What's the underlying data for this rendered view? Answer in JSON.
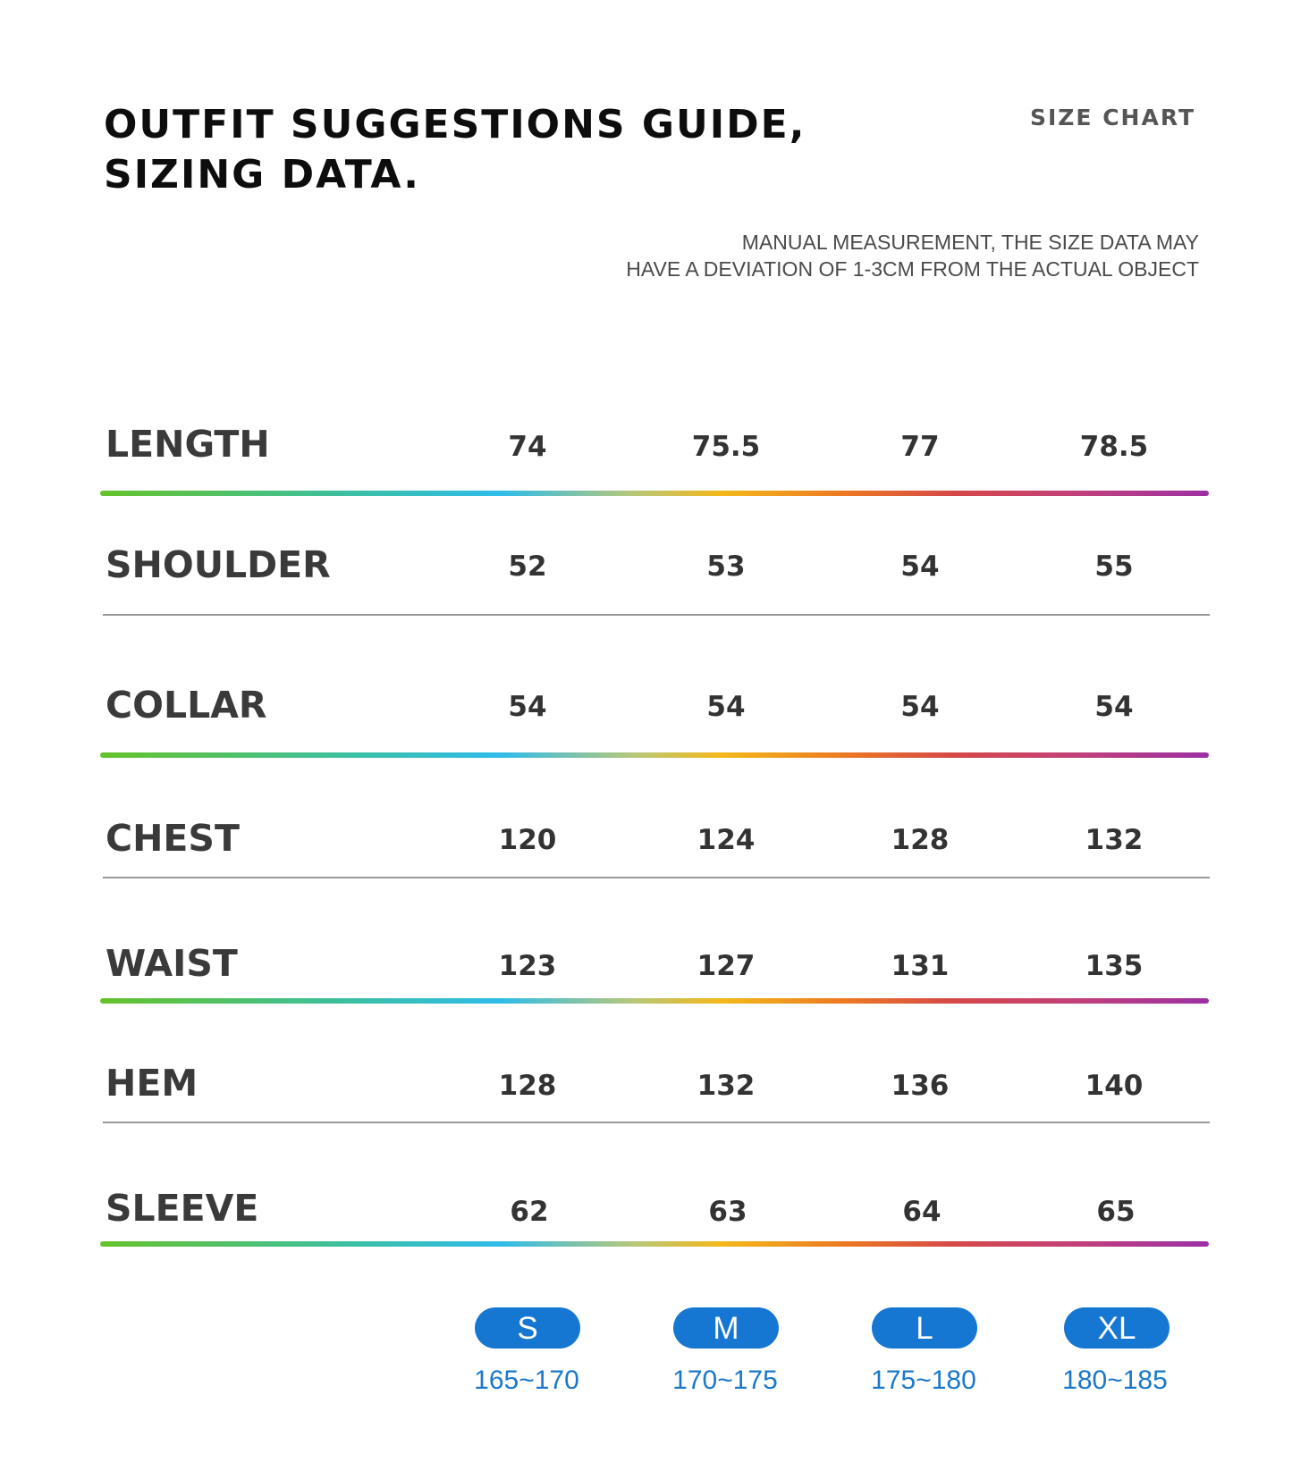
{
  "header": {
    "title_line1": "OUTFIT SUGGESTIONS GUIDE,",
    "title_line2": "SIZING DATA.",
    "size_chart_label": "SIZE CHART",
    "note_line1": "MANUAL MEASUREMENT, THE SIZE DATA MAY",
    "note_line2": "HAVE A DEVIATION OF 1-3CM FROM THE ACTUAL OBJECT"
  },
  "rows": [
    {
      "label": "LENGTH",
      "values": [
        "74",
        "75.5",
        "77",
        "78.5"
      ],
      "divider": "gradient"
    },
    {
      "label": "SHOULDER",
      "values": [
        "52",
        "53",
        "54",
        "55"
      ],
      "divider": "gray"
    },
    {
      "label": "COLLAR",
      "values": [
        "54",
        "54",
        "54",
        "54"
      ],
      "divider": "gradient"
    },
    {
      "label": "CHEST",
      "values": [
        "120",
        "124",
        "128",
        "132"
      ],
      "divider": "gray"
    },
    {
      "label": "WAIST",
      "values": [
        "123",
        "127",
        "131",
        "135"
      ],
      "divider": "gradient"
    },
    {
      "label": "HEM",
      "values": [
        "128",
        "132",
        "136",
        "140"
      ],
      "divider": "gray"
    },
    {
      "label": "SLEEVE",
      "values": [
        "62",
        "63",
        "64",
        "65"
      ],
      "divider": "gradient"
    }
  ],
  "sizes": [
    {
      "label": "S",
      "height": "165~170"
    },
    {
      "label": "M",
      "height": "170~175"
    },
    {
      "label": "L",
      "height": "175~180"
    },
    {
      "label": "XL",
      "height": "180~185"
    }
  ],
  "colors": {
    "size_pill": "#1677d2",
    "height_text": "#1b78c9",
    "gradient_stops": [
      "#66c22a",
      "#3cbfa0",
      "#2fbcea",
      "#b6c77a",
      "#f3b81a",
      "#ec7a22",
      "#d54848",
      "#c2407a",
      "#9b2fa4"
    ],
    "gray_divider": "#9a9a9a"
  }
}
